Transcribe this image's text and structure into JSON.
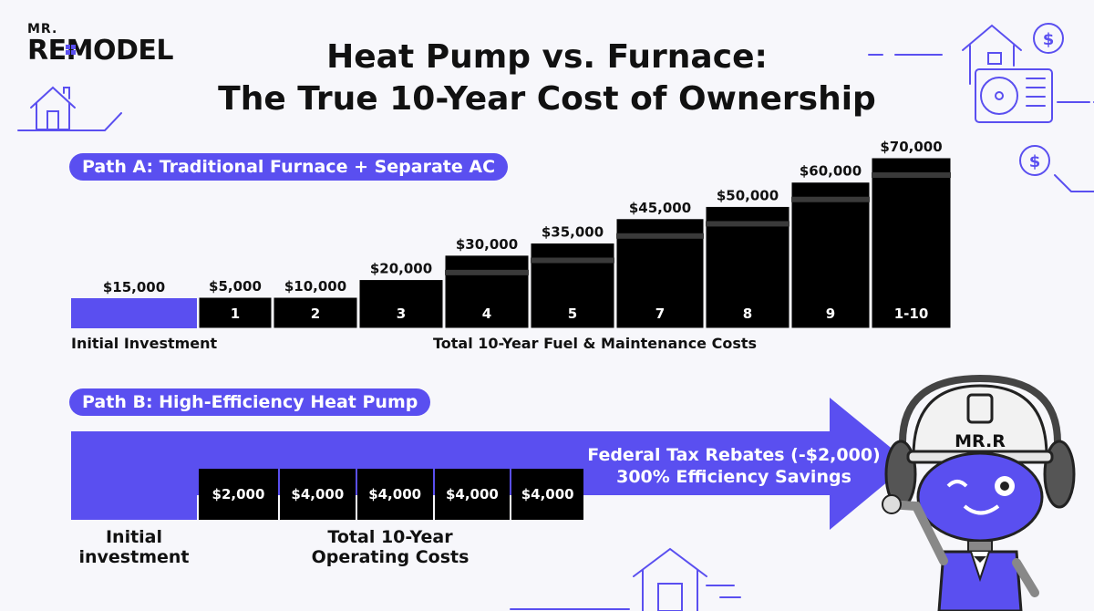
{
  "brand": {
    "top": "MR.",
    "main": "REMODEL"
  },
  "title": {
    "line1": "Heat Pump vs. Furnace:",
    "line2": "The True 10-Year Cost of Ownership"
  },
  "path_a": {
    "label": "Path A: Traditional Furnace + Separate AC",
    "initial_label": "$15,000",
    "initial_caption": "Initial Investment",
    "costs_caption": "Total 10-Year Fuel & Maintenance Costs"
  },
  "path_b": {
    "label": "Path B: High-Efficiency Heat Pump",
    "arrow_line1": "Federal Tax Rebates (-$2,000)",
    "arrow_line2": "300% Efficiency Savings",
    "initial_caption_1": "Initial",
    "initial_caption_2": "investment",
    "costs_caption_1": "Total 10-Year",
    "costs_caption_2": "Operating Costs",
    "cells": [
      "$2,000",
      "$4,000",
      "$4,000",
      "$4,000",
      "$4,000"
    ]
  },
  "mascot": {
    "helmet_text": "MR.R"
  },
  "colors": {
    "accent": "#5a4ff0",
    "bar": "#000000",
    "stripe": "#3a3a3a"
  },
  "chart_data": [
    {
      "type": "bar",
      "title": "Path A: Traditional Furnace + Separate AC",
      "categories": [
        "1",
        "2",
        "3",
        "4",
        "5",
        "7",
        "8",
        "9",
        "1-10"
      ],
      "values": [
        5000,
        10000,
        20000,
        30000,
        35000,
        45000,
        50000,
        60000,
        70000
      ],
      "value_labels": [
        "$5,000",
        "$10,000",
        "$20,000",
        "$30,000",
        "$35,000",
        "$45,000",
        "$50,000",
        "$60,000",
        "$70,000"
      ],
      "initial_investment": 15000,
      "xlabel": "Total 10-Year Fuel & Maintenance Costs",
      "ylabel": "",
      "ylim": [
        0,
        70000
      ],
      "grid": false
    },
    {
      "type": "table",
      "title": "Path B: High-Efficiency Heat Pump",
      "values": [
        2000,
        4000,
        4000,
        4000,
        4000
      ],
      "value_labels": [
        "$2,000",
        "$4,000",
        "$4,000",
        "$4,000",
        "$4,000"
      ],
      "xlabel": "Total 10-Year Operating Costs"
    }
  ]
}
